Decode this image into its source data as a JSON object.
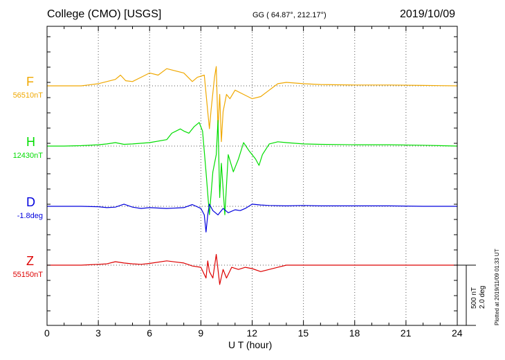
{
  "header": {
    "station": "College (CMO)  [USGS]",
    "coords": "GG ( 64.87°, 212.17°)",
    "date": "2019/10/09"
  },
  "scale": {
    "nt": "500 nT",
    "deg": "2.0 deg"
  },
  "plotted_at": "Plotted at 2019/11/09 01:33 UT",
  "chart_data": {
    "type": "line",
    "title": "College (CMO)  [USGS]",
    "xlabel": "U T (hour)",
    "ylabel": "",
    "xlim": [
      0,
      24
    ],
    "xticks": [
      "0",
      "3",
      "6",
      "9",
      "12",
      "15",
      "18",
      "21",
      "24"
    ],
    "grid": true,
    "series": [
      {
        "name": "F",
        "baseline": "56510nT",
        "color": "#f0a800",
        "points": [
          [
            0,
            0
          ],
          [
            1,
            0
          ],
          [
            2,
            0
          ],
          [
            3,
            5
          ],
          [
            4,
            15
          ],
          [
            4.3,
            25
          ],
          [
            4.6,
            12
          ],
          [
            5,
            10
          ],
          [
            5.5,
            20
          ],
          [
            6,
            30
          ],
          [
            6.5,
            25
          ],
          [
            7,
            40
          ],
          [
            7.5,
            35
          ],
          [
            8,
            30
          ],
          [
            8.5,
            10
          ],
          [
            8.8,
            20
          ],
          [
            9.2,
            25
          ],
          [
            9.4,
            -60
          ],
          [
            9.5,
            -100
          ],
          [
            9.6,
            -55
          ],
          [
            9.8,
            20
          ],
          [
            9.9,
            45
          ],
          [
            10.0,
            -100
          ],
          [
            10.1,
            -20
          ],
          [
            10.2,
            -130
          ],
          [
            10.3,
            -60
          ],
          [
            10.5,
            -20
          ],
          [
            10.7,
            -30
          ],
          [
            11,
            -10
          ],
          [
            11.5,
            -20
          ],
          [
            12,
            -30
          ],
          [
            12.5,
            -25
          ],
          [
            13,
            -10
          ],
          [
            13.5,
            5
          ],
          [
            14,
            8
          ],
          [
            15,
            5
          ],
          [
            16,
            3
          ],
          [
            18,
            2
          ],
          [
            20,
            2
          ],
          [
            22,
            1
          ],
          [
            24,
            0
          ]
        ]
      },
      {
        "name": "H",
        "baseline": "12430nT",
        "color": "#00dd00",
        "points": [
          [
            0,
            0
          ],
          [
            1,
            0
          ],
          [
            2,
            1
          ],
          [
            3,
            3
          ],
          [
            3.5,
            5
          ],
          [
            4,
            8
          ],
          [
            4.5,
            4
          ],
          [
            5,
            5
          ],
          [
            6,
            8
          ],
          [
            7,
            15
          ],
          [
            7.3,
            30
          ],
          [
            7.8,
            40
          ],
          [
            8,
            35
          ],
          [
            8.3,
            30
          ],
          [
            8.6,
            45
          ],
          [
            8.9,
            55
          ],
          [
            9.1,
            35
          ],
          [
            9.3,
            -60
          ],
          [
            9.5,
            -160
          ],
          [
            9.7,
            -60
          ],
          [
            9.9,
            -20
          ],
          [
            10.0,
            60
          ],
          [
            10.1,
            -120
          ],
          [
            10.2,
            -40
          ],
          [
            10.4,
            -160
          ],
          [
            10.6,
            -20
          ],
          [
            10.9,
            -60
          ],
          [
            11.2,
            -30
          ],
          [
            11.5,
            8
          ],
          [
            11.8,
            -10
          ],
          [
            12.2,
            -30
          ],
          [
            12.4,
            -45
          ],
          [
            12.6,
            -20
          ],
          [
            13,
            5
          ],
          [
            13.5,
            10
          ],
          [
            14,
            8
          ],
          [
            15,
            5
          ],
          [
            16,
            4
          ],
          [
            18,
            3
          ],
          [
            20,
            3
          ],
          [
            22,
            2
          ],
          [
            24,
            0
          ]
        ]
      },
      {
        "name": "D",
        "baseline": "-1.8deg",
        "color": "#0000dd",
        "points": [
          [
            0,
            0
          ],
          [
            2,
            0
          ],
          [
            3,
            -1
          ],
          [
            3.5,
            -3
          ],
          [
            4,
            -2
          ],
          [
            4.5,
            5
          ],
          [
            5,
            -2
          ],
          [
            5.5,
            -5
          ],
          [
            6,
            -3
          ],
          [
            7,
            -5
          ],
          [
            8,
            -3
          ],
          [
            8.5,
            4
          ],
          [
            9,
            -5
          ],
          [
            9.2,
            -20
          ],
          [
            9.3,
            -60
          ],
          [
            9.4,
            -20
          ],
          [
            9.5,
            5
          ],
          [
            9.7,
            -10
          ],
          [
            10,
            -20
          ],
          [
            10.3,
            -5
          ],
          [
            10.6,
            -15
          ],
          [
            11,
            -8
          ],
          [
            11.3,
            -10
          ],
          [
            11.6,
            -5
          ],
          [
            12,
            5
          ],
          [
            12.5,
            3
          ],
          [
            13,
            2
          ],
          [
            14,
            1
          ],
          [
            15,
            2
          ],
          [
            16,
            1
          ],
          [
            18,
            1
          ],
          [
            20,
            1
          ],
          [
            22,
            0
          ],
          [
            24,
            0
          ]
        ]
      },
      {
        "name": "Z",
        "baseline": "55150nT",
        "color": "#dd0000",
        "points": [
          [
            0,
            0
          ],
          [
            2,
            0
          ],
          [
            3,
            2
          ],
          [
            3.5,
            3
          ],
          [
            4,
            8
          ],
          [
            4.5,
            5
          ],
          [
            5,
            3
          ],
          [
            5.5,
            2
          ],
          [
            6,
            4
          ],
          [
            7,
            10
          ],
          [
            8,
            5
          ],
          [
            8.5,
            -2
          ],
          [
            9,
            -5
          ],
          [
            9.3,
            -30
          ],
          [
            9.4,
            10
          ],
          [
            9.5,
            -15
          ],
          [
            9.7,
            -30
          ],
          [
            9.9,
            25
          ],
          [
            10.1,
            -45
          ],
          [
            10.3,
            -10
          ],
          [
            10.5,
            -30
          ],
          [
            10.8,
            -5
          ],
          [
            11.2,
            -10
          ],
          [
            11.6,
            -5
          ],
          [
            12,
            -8
          ],
          [
            12.5,
            -15
          ],
          [
            13,
            -10
          ],
          [
            13.5,
            -5
          ],
          [
            14,
            0
          ],
          [
            15,
            0
          ],
          [
            16,
            0
          ],
          [
            18,
            0
          ],
          [
            20,
            0
          ],
          [
            22,
            0
          ],
          [
            24,
            0
          ]
        ]
      }
    ]
  }
}
